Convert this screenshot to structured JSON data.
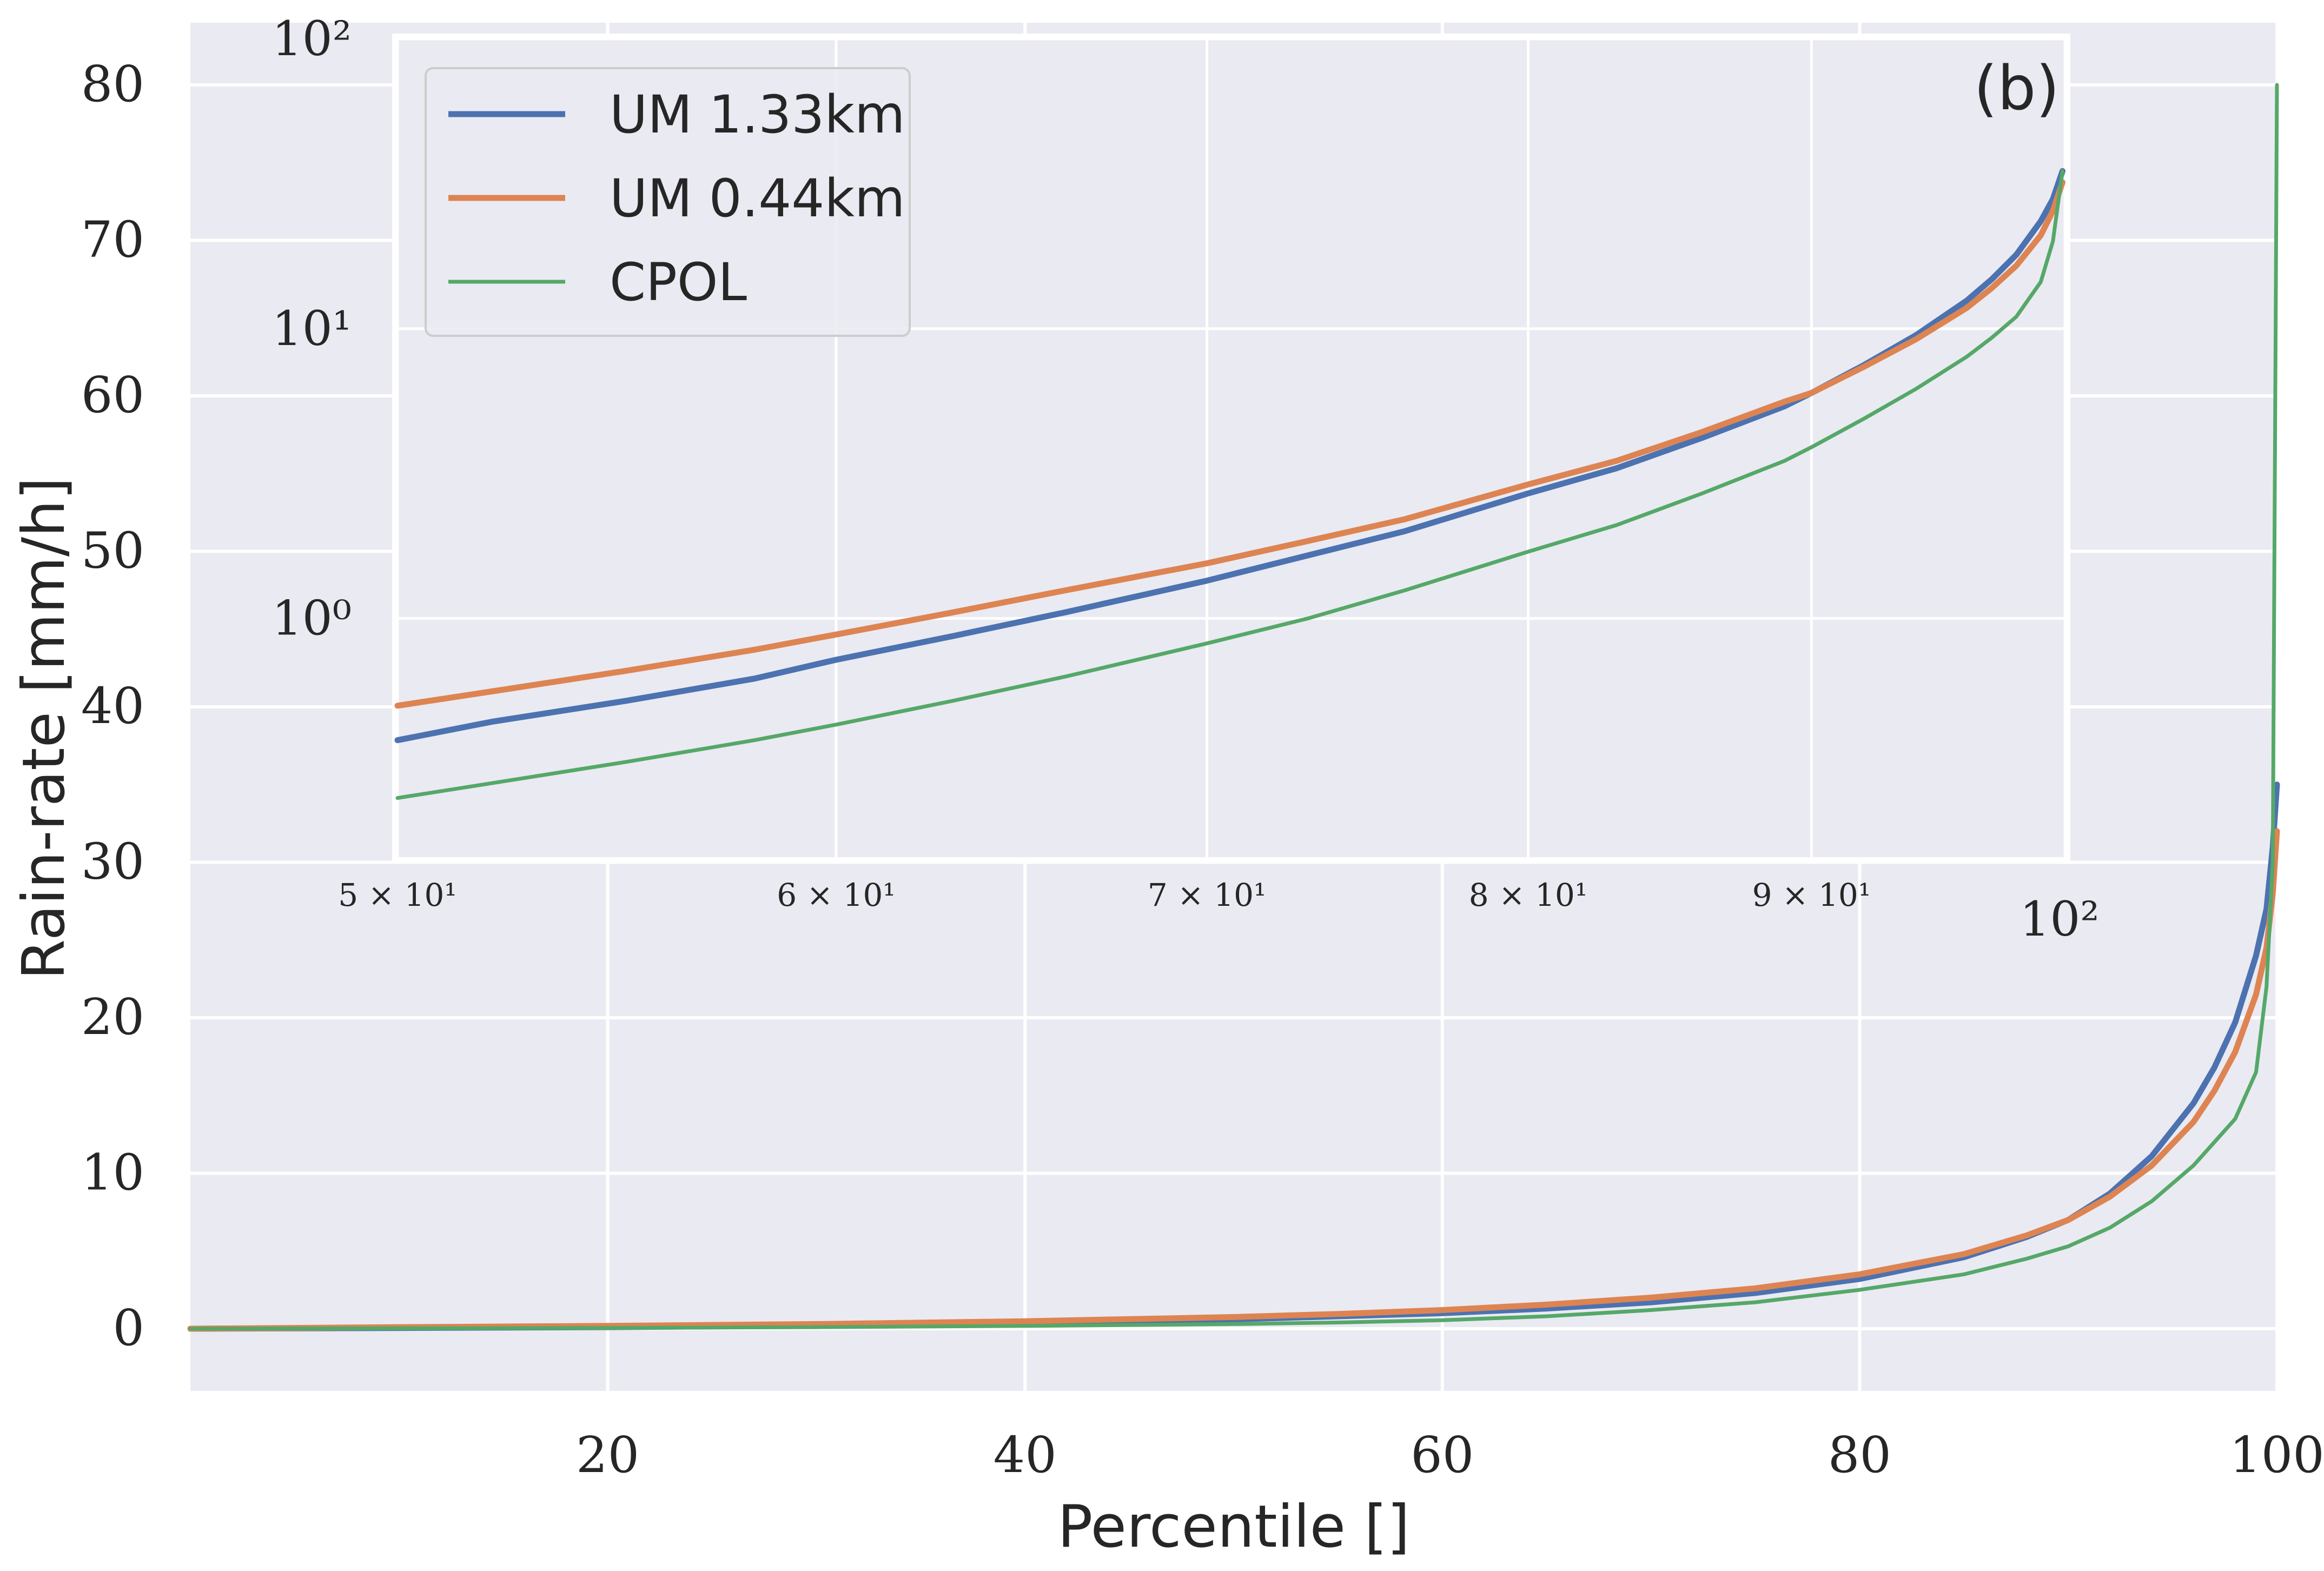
{
  "chart_data": [
    {
      "type": "line",
      "panel_label": "(b)",
      "xlabel": "Percentile []",
      "ylabel": "Rain-rate [mm/h]",
      "xlim": [
        0,
        100
      ],
      "ylim": [
        -4,
        84
      ],
      "x_ticks": [
        "20",
        "40",
        "60",
        "80",
        "100"
      ],
      "y_ticks": [
        "0",
        "10",
        "20",
        "30",
        "40",
        "50",
        "60",
        "70",
        "80"
      ],
      "grid": true,
      "x": [
        0,
        10,
        20,
        30,
        40,
        50,
        55,
        60,
        65,
        70,
        75,
        80,
        85,
        88,
        90,
        92,
        94,
        96,
        97,
        98,
        99,
        99.5,
        99.8,
        100
      ],
      "series": [
        {
          "name": "UM 1.33km",
          "color": "#4c72b0",
          "values": [
            0,
            0.05,
            0.1,
            0.2,
            0.35,
            0.6,
            0.8,
            1.0,
            1.3,
            1.7,
            2.3,
            3.2,
            4.6,
            5.9,
            7.0,
            8.7,
            11.1,
            14.5,
            16.8,
            19.7,
            24.0,
            27.0,
            31.0,
            35.0
          ]
        },
        {
          "name": "UM 0.44km",
          "color": "#dd8452",
          "values": [
            0,
            0.1,
            0.18,
            0.3,
            0.48,
            0.75,
            0.95,
            1.2,
            1.55,
            2.0,
            2.6,
            3.5,
            4.8,
            6.0,
            7.0,
            8.5,
            10.5,
            13.3,
            15.3,
            17.8,
            21.5,
            24.5,
            28.0,
            32.0
          ]
        },
        {
          "name": "CPOL",
          "color": "#55a868",
          "values": [
            0,
            0.02,
            0.05,
            0.1,
            0.18,
            0.3,
            0.4,
            0.55,
            0.8,
            1.2,
            1.7,
            2.5,
            3.5,
            4.5,
            5.3,
            6.5,
            8.2,
            10.5,
            12.0,
            13.5,
            16.5,
            22.0,
            30.0,
            80.0
          ]
        }
      ]
    },
    {
      "type": "line",
      "log_x": true,
      "log_y": true,
      "xlim": [
        50,
        100
      ],
      "ylim": [
        0.15,
        100
      ],
      "x_tick_values": [
        50,
        60,
        70,
        80,
        90,
        100
      ],
      "x_tick_labels": [
        "5 × 10¹",
        "6 × 10¹",
        "7 × 10¹",
        "8 × 10¹",
        "9 × 10¹",
        "10²"
      ],
      "y_tick_values": [
        1,
        10,
        100
      ],
      "y_tick_labels": [
        "10⁰",
        "10¹",
        "10²"
      ],
      "grid": true,
      "legend_position": "top-left",
      "x": [
        50,
        52,
        55,
        58,
        60,
        63,
        66,
        70,
        73,
        76,
        80,
        83,
        86,
        89,
        90,
        92,
        94,
        96,
        97,
        98,
        99,
        99.5,
        99.9
      ],
      "series": [
        {
          "name": "UM 1.33km",
          "color": "#4c72b0",
          "values": [
            0.38,
            0.44,
            0.52,
            0.62,
            0.72,
            0.87,
            1.05,
            1.35,
            1.65,
            2.0,
            2.7,
            3.3,
            4.2,
            5.4,
            6.0,
            7.5,
            9.5,
            12.5,
            14.8,
            18.0,
            23.5,
            28.0,
            35.0
          ]
        },
        {
          "name": "UM 0.44km",
          "color": "#dd8452",
          "values": [
            0.5,
            0.56,
            0.66,
            0.78,
            0.88,
            1.05,
            1.25,
            1.55,
            1.85,
            2.2,
            2.9,
            3.5,
            4.4,
            5.6,
            6.0,
            7.4,
            9.2,
            11.8,
            13.8,
            16.5,
            21.0,
            25.5,
            32.0
          ]
        },
        {
          "name": "CPOL",
          "color": "#55a868",
          "values": [
            0.24,
            0.27,
            0.32,
            0.38,
            0.43,
            0.52,
            0.63,
            0.82,
            1.0,
            1.25,
            1.7,
            2.1,
            2.7,
            3.5,
            3.9,
            4.9,
            6.2,
            8.0,
            9.3,
            11.0,
            14.5,
            20.0,
            35.0
          ]
        }
      ]
    }
  ]
}
